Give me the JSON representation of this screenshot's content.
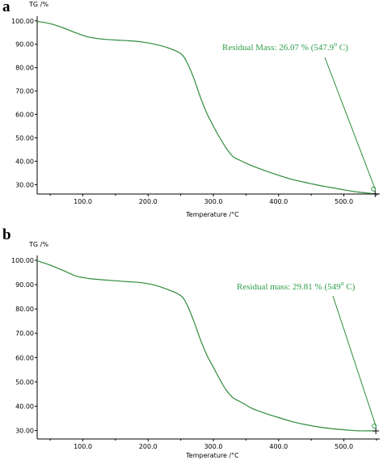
{
  "chart_data": [
    {
      "type": "line",
      "panel_label": "a",
      "title": "",
      "ylabel": "TG /%",
      "xlabel": "Temperature /°C",
      "xlim": [
        30,
        555
      ],
      "ylim": [
        26,
        102
      ],
      "xticks": [
        100,
        200,
        300,
        400,
        500
      ],
      "xtick_labels": [
        "100.0",
        "200.0",
        "300.0",
        "400.0",
        "500.0"
      ],
      "yticks": [
        30,
        40,
        50,
        60,
        70,
        80,
        90,
        100
      ],
      "ytick_labels": [
        "30.00",
        "40.00",
        "50.00",
        "60.00",
        "70.00",
        "80.00",
        "90.00",
        "100.00"
      ],
      "grid": false,
      "series": [
        {
          "color": "#2e8b3a",
          "x": [
            30,
            50,
            70,
            90,
            110,
            130,
            150,
            170,
            190,
            210,
            230,
            250,
            260,
            270,
            280,
            290,
            300,
            310,
            320,
            330,
            340,
            350,
            360,
            380,
            400,
            420,
            440,
            460,
            480,
            500,
            520,
            540,
            548
          ],
          "y": [
            99.8,
            98.8,
            97.0,
            94.8,
            93.0,
            92.2,
            91.8,
            91.5,
            91.0,
            90.0,
            88.5,
            86.0,
            82.0,
            75.5,
            67.5,
            60.5,
            55.0,
            50.0,
            45.5,
            42.0,
            40.5,
            39.2,
            38.0,
            35.9,
            34.0,
            32.3,
            31.0,
            29.8,
            28.8,
            27.8,
            26.9,
            26.3,
            26.07
          ]
        }
      ],
      "annotation": {
        "text": "Residual Mass: 26.07 % (547.9",
        "sup": "o",
        "suffix": " C)",
        "point": [
          547.9,
          26.07
        ]
      }
    },
    {
      "type": "line",
      "panel_label": "b",
      "title": "",
      "ylabel": "TG /%",
      "xlabel": "Temperature /°C",
      "xlim": [
        30,
        555
      ],
      "ylim": [
        26.5,
        102
      ],
      "xticks": [
        100,
        200,
        300,
        400,
        500
      ],
      "xtick_labels": [
        "100.0",
        "200.0",
        "300.0",
        "400.0",
        "500.0"
      ],
      "yticks": [
        30,
        40,
        50,
        60,
        70,
        80,
        90,
        100
      ],
      "ytick_labels": [
        "30.00",
        "40.00",
        "50.00",
        "60.00",
        "70.00",
        "80.00",
        "90.00",
        "100.00"
      ],
      "grid": false,
      "series": [
        {
          "color": "#2e8b3a",
          "x": [
            30,
            50,
            70,
            90,
            110,
            130,
            150,
            170,
            190,
            210,
            230,
            250,
            260,
            270,
            280,
            290,
            300,
            310,
            320,
            330,
            340,
            350,
            360,
            380,
            400,
            420,
            440,
            460,
            480,
            500,
            520,
            540,
            549
          ],
          "y": [
            99.8,
            98.0,
            95.8,
            93.5,
            92.5,
            92.0,
            91.6,
            91.2,
            90.8,
            89.8,
            88.0,
            85.5,
            81.5,
            75.0,
            67.5,
            61.0,
            56.0,
            51.0,
            46.5,
            43.5,
            42.0,
            40.5,
            39.0,
            37.0,
            35.3,
            33.7,
            32.5,
            31.5,
            30.8,
            30.3,
            29.9,
            29.85,
            29.81
          ]
        }
      ],
      "annotation": {
        "text": "Residual mass: 29.81 % (549",
        "sup": "o",
        "suffix": " C)",
        "point": [
          549,
          29.81
        ]
      }
    }
  ]
}
